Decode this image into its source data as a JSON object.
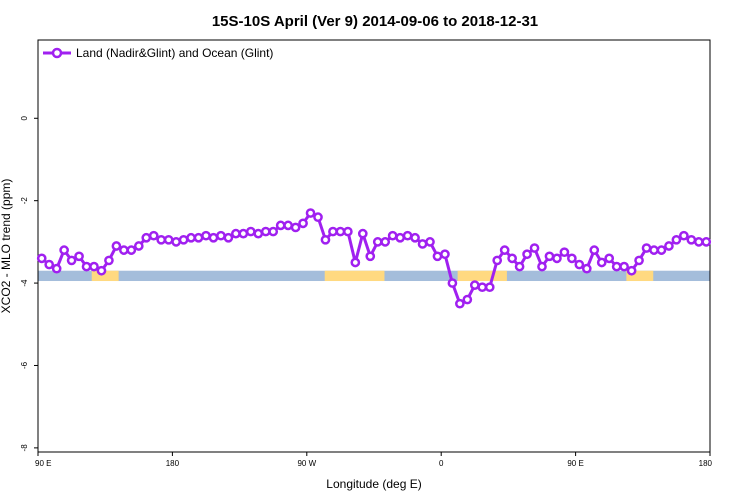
{
  "chart_data": {
    "type": "line",
    "title": "15S-10S April (Ver 9)   2014-09-06 to 2018-12-31",
    "xlabel": "Longitude (deg E)",
    "ylabel": "XCO2 - MLO trend (ppm)",
    "xlim": [
      90,
      540
    ],
    "ylim": [
      -8.1,
      1.9
    ],
    "x_ticks": [
      {
        "value": 90,
        "label": "90 E"
      },
      {
        "value": 180,
        "label": "180"
      },
      {
        "value": 270,
        "label": "90 W"
      },
      {
        "value": 360,
        "label": "0"
      },
      {
        "value": 450,
        "label": "90 E"
      },
      {
        "value": 540,
        "label": "180"
      }
    ],
    "y_ticks": [
      {
        "value": 0,
        "label": "0"
      },
      {
        "value": -2,
        "label": "-2"
      },
      {
        "value": -4,
        "label": "-4"
      },
      {
        "value": -6,
        "label": "-6"
      },
      {
        "value": -8,
        "label": "-8"
      }
    ],
    "grid": false,
    "legend_position": "top-left",
    "colors": {
      "series": "#a020f0",
      "ocean_band": "#a4bddb",
      "land_band": "#ffd980"
    },
    "surface_band": {
      "y_range": [
        -3.95,
        -3.7
      ],
      "land_segments": [
        [
          126,
          144
        ],
        [
          282,
          322
        ],
        [
          371,
          404
        ],
        [
          484,
          502
        ]
      ]
    },
    "series": [
      {
        "name": "Land (Nadir&Glint) and Ocean (Glint)",
        "x": [
          92.5,
          97.5,
          102.5,
          107.5,
          112.5,
          117.5,
          122.5,
          127.5,
          132.5,
          137.5,
          142.5,
          147.5,
          152.5,
          157.5,
          162.5,
          167.5,
          172.5,
          177.5,
          182.5,
          187.5,
          192.5,
          197.5,
          202.5,
          207.5,
          212.5,
          217.5,
          222.5,
          227.5,
          232.5,
          237.5,
          242.5,
          247.5,
          252.5,
          257.5,
          262.5,
          267.5,
          272.5,
          277.5,
          282.5,
          287.5,
          292.5,
          297.5,
          302.5,
          307.5,
          312.5,
          317.5,
          322.5,
          327.5,
          332.5,
          337.5,
          342.5,
          347.5,
          352.5,
          357.5,
          362.5,
          367.5,
          372.5,
          377.5,
          382.5,
          387.5,
          392.5,
          397.5,
          402.5,
          407.5,
          412.5,
          417.5,
          422.5,
          427.5,
          432.5,
          437.5,
          442.5,
          447.5,
          452.5,
          457.5,
          462.5,
          467.5,
          472.5,
          477.5,
          482.5,
          487.5,
          492.5,
          497.5,
          502.5,
          507.5,
          512.5,
          517.5,
          522.5,
          527.5,
          532.5,
          537.5
        ],
        "values": [
          -3.4,
          -3.55,
          -3.65,
          -3.2,
          -3.45,
          -3.35,
          -3.6,
          -3.6,
          -3.7,
          -3.45,
          -3.1,
          -3.2,
          -3.2,
          -3.1,
          -2.9,
          -2.85,
          -2.95,
          -2.95,
          -3.0,
          -2.95,
          -2.9,
          -2.9,
          -2.85,
          -2.9,
          -2.85,
          -2.9,
          -2.8,
          -2.8,
          -2.75,
          -2.8,
          -2.75,
          -2.75,
          -2.6,
          -2.6,
          -2.65,
          -2.55,
          -2.3,
          -2.4,
          -2.95,
          -2.75,
          -2.75,
          -2.75,
          -3.5,
          -2.8,
          -3.35,
          -3.0,
          -3.0,
          -2.85,
          -2.9,
          -2.85,
          -2.9,
          -3.05,
          -3.0,
          -3.35,
          -3.3,
          -4.0,
          -4.5,
          -4.4,
          -4.05,
          -4.1,
          -4.1,
          -3.45,
          -3.2,
          -3.4,
          -3.6,
          -3.3,
          -3.15,
          -3.6,
          -3.35,
          -3.4,
          -3.25,
          -3.4,
          -3.55,
          -3.65,
          -3.2,
          -3.5,
          -3.4,
          -3.6,
          -3.6,
          -3.7,
          -3.45,
          -3.15,
          -3.2,
          -3.2,
          -3.1,
          -2.95,
          -2.85,
          -2.95,
          -3.0,
          -3.0
        ]
      }
    ]
  }
}
